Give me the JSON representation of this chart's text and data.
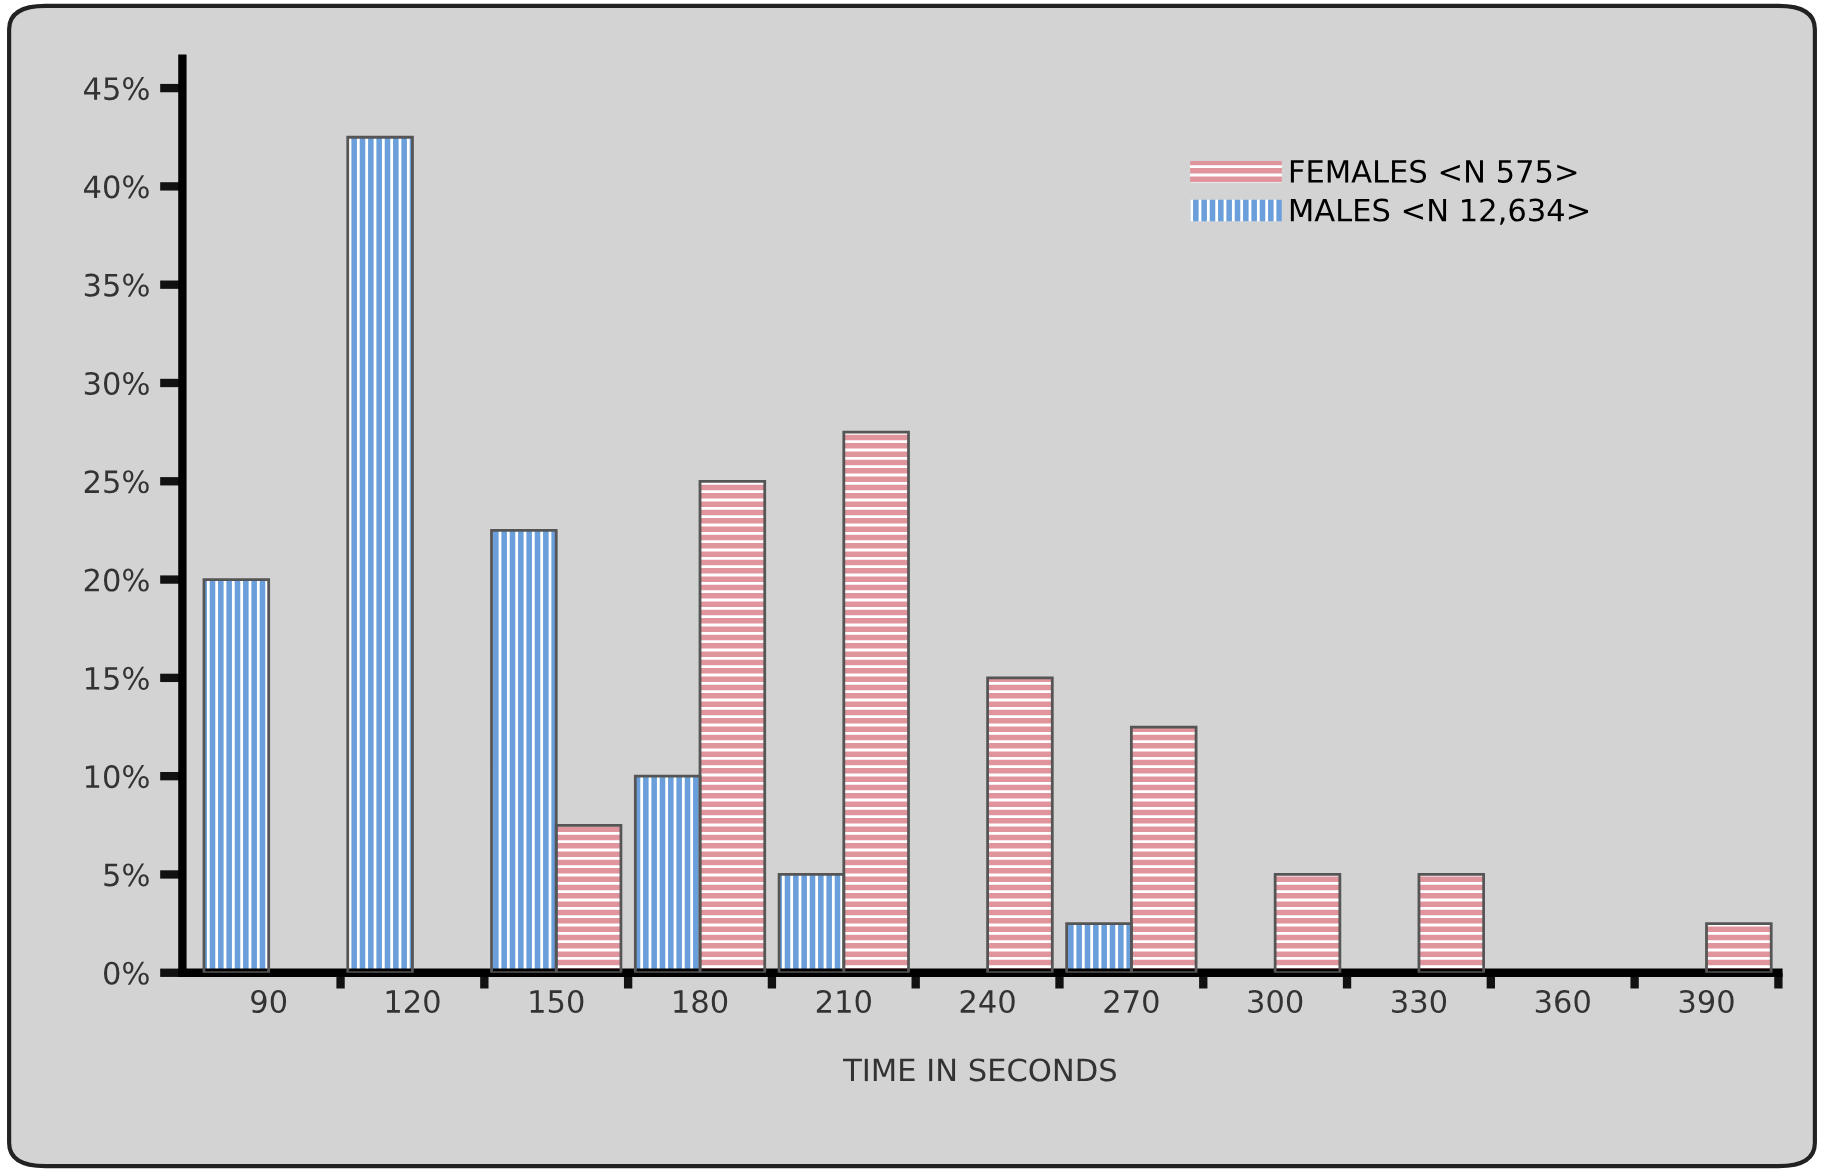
{
  "chart_data": {
    "type": "bar",
    "xlabel": "TIME IN SECONDS",
    "categories": [
      "90",
      "120",
      "150",
      "180",
      "210",
      "240",
      "270",
      "300",
      "330",
      "360",
      "390"
    ],
    "series": [
      {
        "name": "MALES <N 12,634>",
        "color": "#6a9fdc",
        "values": [
          20,
          42.5,
          22.5,
          10,
          5,
          null,
          2.5,
          null,
          null,
          null,
          null
        ]
      },
      {
        "name": "FEMALES <N 575>",
        "color": "#e0949c",
        "values": [
          null,
          null,
          7.5,
          25,
          27.5,
          15,
          12.5,
          5,
          5,
          null,
          2.5
        ]
      }
    ],
    "ylim": [
      0,
      46.5
    ],
    "yticks": [
      {
        "value": 0,
        "label": "0%"
      },
      {
        "value": 5,
        "label": "5%"
      },
      {
        "value": 10,
        "label": "10%"
      },
      {
        "value": 15,
        "label": "15%"
      },
      {
        "value": 20,
        "label": "20%"
      },
      {
        "value": 25,
        "label": "25%"
      },
      {
        "value": 30,
        "label": "30%"
      },
      {
        "value": 35,
        "label": "35%"
      },
      {
        "value": 40,
        "label": "40%"
      },
      {
        "value": 45,
        "label": "45%"
      }
    ],
    "grid": false,
    "legend": "top right"
  }
}
